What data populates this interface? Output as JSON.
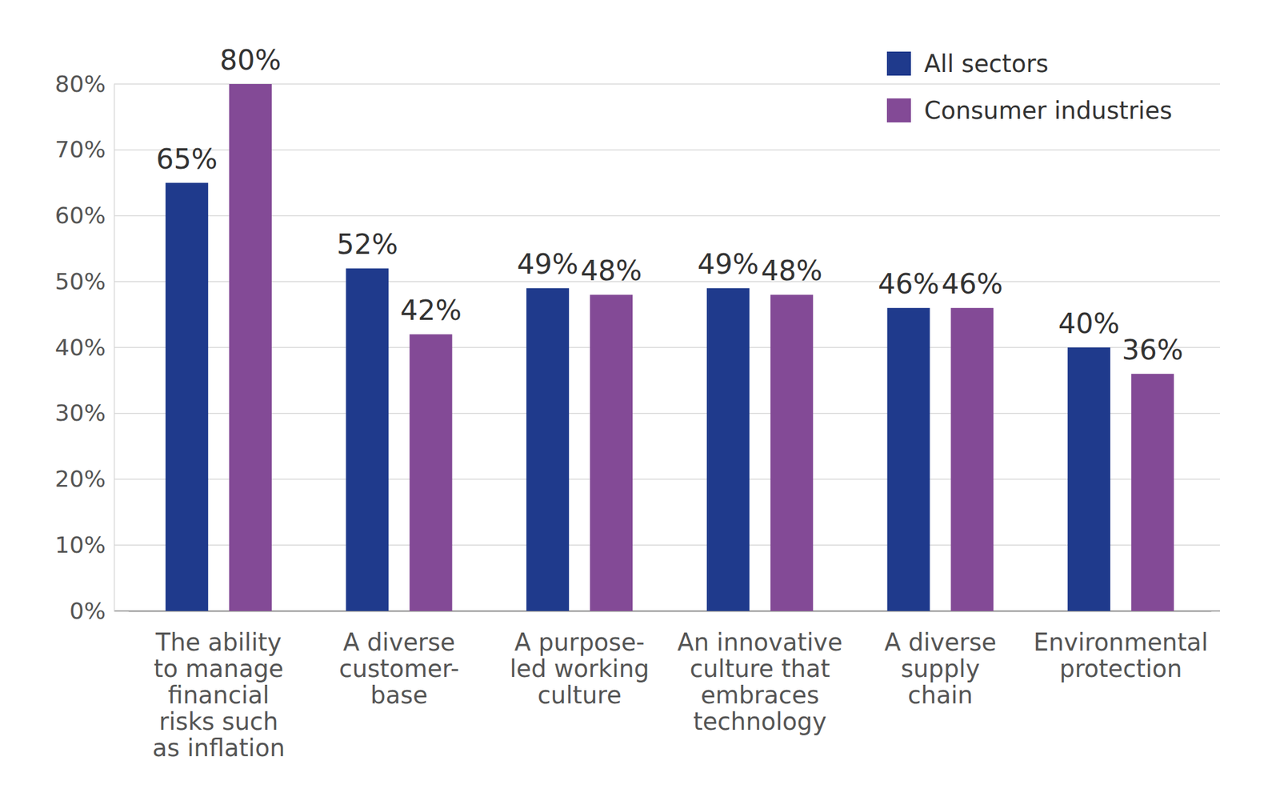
{
  "chart_data": {
    "type": "bar",
    "categories": [
      "The ability\nto manage\nfinancial\nrisks such\nas inflation",
      "A diverse\ncustomer-\nbase",
      "A purpose-\nled working\nculture",
      "An innovative\nculture that\nembraces\ntechnology",
      "A diverse\nsupply\nchain",
      "Environmental\nprotection"
    ],
    "series": [
      {
        "name": "All sectors",
        "color": "#1f3a8c",
        "values": [
          65,
          52,
          49,
          49,
          46,
          40
        ],
        "value_labels": [
          "65%",
          "52%",
          "49%",
          "49%",
          "46%",
          "40%"
        ]
      },
      {
        "name": "Consumer industries",
        "color": "#834a96",
        "values": [
          80,
          42,
          48,
          48,
          46,
          36
        ],
        "value_labels": [
          "80%",
          "42%",
          "48%",
          "48%",
          "46%",
          "36%"
        ]
      }
    ],
    "ylim": [
      0,
      80
    ],
    "yticks": [
      {
        "value": 0,
        "label": "0%"
      },
      {
        "value": 10,
        "label": "10%"
      },
      {
        "value": 20,
        "label": "20%"
      },
      {
        "value": 30,
        "label": "30%"
      },
      {
        "value": 40,
        "label": "40%"
      },
      {
        "value": 50,
        "label": "50%"
      },
      {
        "value": 60,
        "label": "60%"
      },
      {
        "value": 70,
        "label": "70%"
      },
      {
        "value": 80,
        "label": "80%"
      }
    ],
    "grid": true,
    "legend": "top-right",
    "data_labels": true
  }
}
